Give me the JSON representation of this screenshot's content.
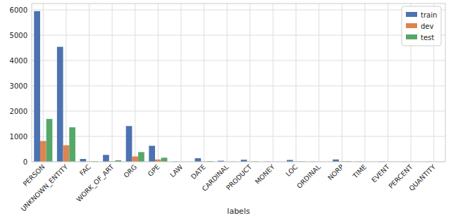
{
  "chart_data": {
    "type": "bar",
    "x_label": "labels",
    "categories": [
      "PERSON",
      "UNKNOWN_ENTITY",
      "FAC",
      "WORK_OF_ART",
      "ORG",
      "GPE",
      "LAW",
      "DATE",
      "CARDINAL",
      "PRODUCT",
      "MONEY",
      "LOC",
      "ORDINAL",
      "NORP",
      "TIME",
      "EVENT",
      "PERCENT",
      "QUANTITY"
    ],
    "series": [
      {
        "name": "train",
        "color": "#4c72b0",
        "values": [
          5950,
          4540,
          110,
          270,
          1410,
          630,
          10,
          140,
          40,
          80,
          10,
          70,
          10,
          90,
          10,
          10,
          5,
          5
        ]
      },
      {
        "name": "dev",
        "color": "#dd8452",
        "values": [
          820,
          650,
          10,
          20,
          210,
          90,
          0,
          15,
          5,
          10,
          0,
          10,
          2,
          15,
          2,
          2,
          0,
          0
        ]
      },
      {
        "name": "test",
        "color": "#55a868",
        "values": [
          1690,
          1360,
          20,
          60,
          380,
          160,
          0,
          25,
          10,
          15,
          2,
          15,
          2,
          20,
          2,
          2,
          0,
          0
        ]
      }
    ],
    "ylim": [
      0,
      6250
    ],
    "yticks": [
      0,
      1000,
      2000,
      3000,
      4000,
      5000,
      6000
    ],
    "grid": true,
    "legend": "upper-right"
  }
}
